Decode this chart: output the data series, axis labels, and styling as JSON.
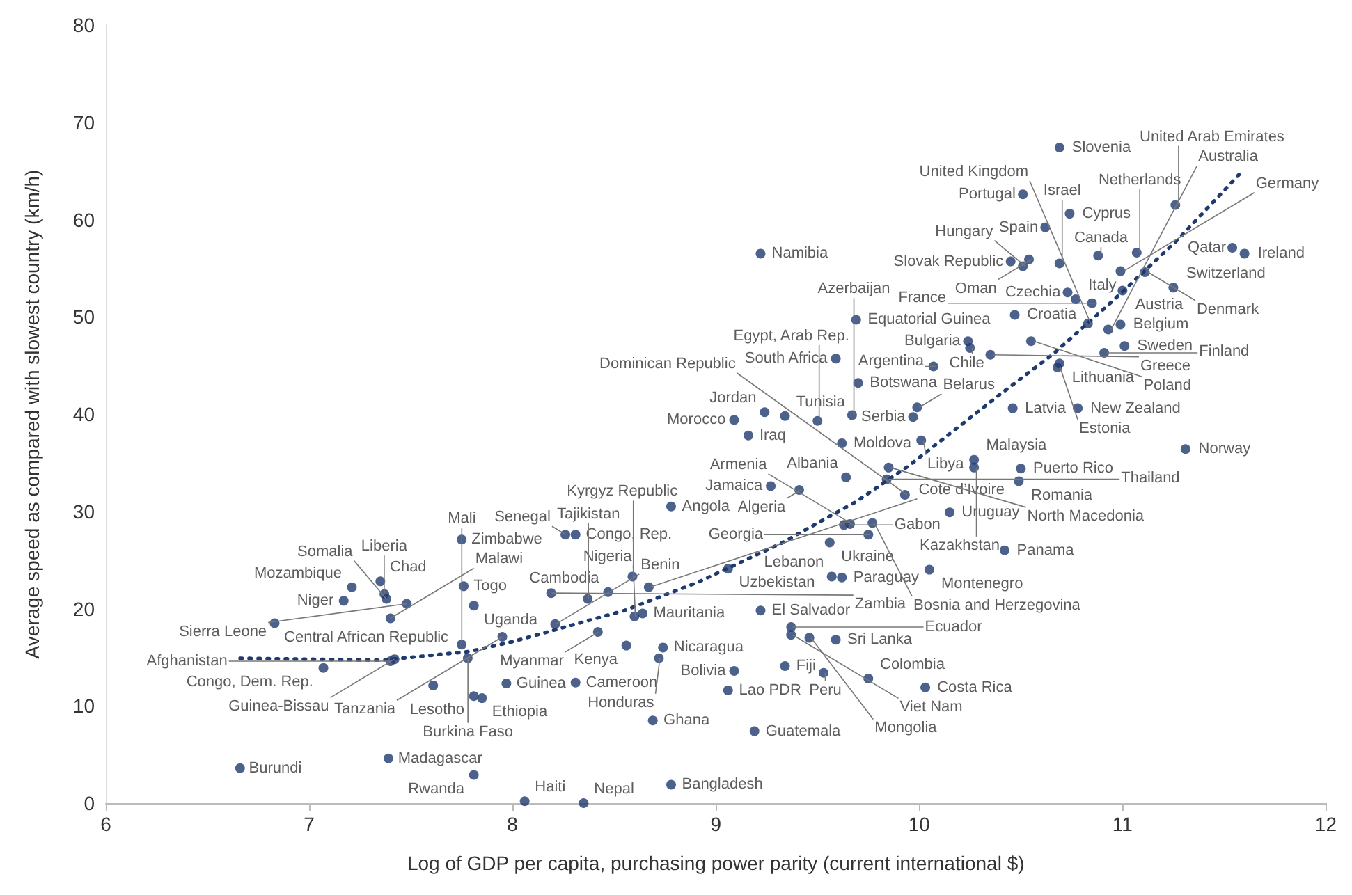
{
  "chart_data": {
    "type": "scatter",
    "xlabel": "Log of GDP per capita, purchasing power parity (current international $)",
    "ylabel": "Average speed as compared with slowest country (km/h)",
    "xlim": [
      6,
      12
    ],
    "ylim": [
      0,
      80
    ],
    "xticks": [
      6,
      7,
      8,
      9,
      10,
      11,
      12
    ],
    "yticks": [
      0,
      10,
      20,
      30,
      40,
      50,
      60,
      70,
      80
    ],
    "grid": false,
    "marker": "circle",
    "series": [
      {
        "type": "scatter",
        "color": "#1f3a6e",
        "x": [
          6.66,
          7.39,
          7.81,
          8.06,
          8.35,
          8.78,
          6.83,
          7.17,
          7.21,
          7.35,
          7.37,
          7.38,
          7.4,
          7.48,
          7.75,
          7.76,
          7.81,
          8.19,
          7.95,
          7.75,
          7.78,
          7.42,
          7.4,
          7.07,
          7.81,
          7.85,
          7.61,
          7.97,
          8.21,
          8.42,
          8.26,
          8.31,
          8.37,
          8.47,
          8.59,
          8.67,
          8.78,
          8.64,
          8.6,
          8.56,
          8.72,
          8.74,
          8.31,
          8.69,
          9.06,
          9.09,
          9.06,
          9.19,
          9.22,
          9.34,
          9.37,
          9.37,
          9.46,
          9.59,
          9.53,
          9.75,
          10.03,
          9.56,
          9.57,
          9.62,
          9.63,
          9.66,
          9.77,
          9.75,
          9.27,
          9.41,
          9.64,
          9.84,
          9.85,
          9.93,
          9.16,
          9.62,
          10.01,
          10.27,
          10.27,
          10.5,
          10.49,
          10.15,
          10.42,
          10.05,
          11.31,
          9.22,
          9.69,
          9.59,
          9.7,
          9.5,
          9.34,
          9.24,
          9.09,
          9.67,
          9.97,
          9.99,
          10.24,
          10.25,
          10.35,
          10.07,
          10.46,
          10.78,
          10.69,
          10.68,
          10.55,
          10.47,
          10.73,
          10.77,
          10.85,
          10.83,
          10.91,
          10.93,
          10.99,
          11.01,
          11.0,
          11.11,
          11.07,
          10.99,
          11.25,
          11.54,
          11.6,
          11.26,
          10.88,
          10.74,
          10.69,
          10.51,
          10.62,
          10.69,
          10.54,
          10.45,
          10.51
        ],
        "values": [
          3.6,
          4.6,
          2.9,
          0.2,
          0,
          1.9,
          18.5,
          20.8,
          22.2,
          22.8,
          21.5,
          21.0,
          19.0,
          20.5,
          27.1,
          22.3,
          20.3,
          21.6,
          17.1,
          16.3,
          14.9,
          14.8,
          14.6,
          13.9,
          11.0,
          10.8,
          12.1,
          12.3,
          18.4,
          17.6,
          27.6,
          27.6,
          21.0,
          21.7,
          23.3,
          22.2,
          30.5,
          19.5,
          19.2,
          16.2,
          14.9,
          16.0,
          12.4,
          8.5,
          24.1,
          13.6,
          11.6,
          7.4,
          19.8,
          14.1,
          18.1,
          17.3,
          17.0,
          16.8,
          13.4,
          12.8,
          11.9,
          26.8,
          23.3,
          23.2,
          28.6,
          28.7,
          28.8,
          27.6,
          32.6,
          32.2,
          33.5,
          33.3,
          34.5,
          31.7,
          37.8,
          37.0,
          37.3,
          35.3,
          34.5,
          34.4,
          33.1,
          29.9,
          26.0,
          24.0,
          36.4,
          56.5,
          49.7,
          45.7,
          43.2,
          39.3,
          39.8,
          40.2,
          39.4,
          39.9,
          39.7,
          40.7,
          47.5,
          46.8,
          46.1,
          44.9,
          40.6,
          40.6,
          45.2,
          44.8,
          47.5,
          50.2,
          52.5,
          51.8,
          51.4,
          49.3,
          46.3,
          48.7,
          49.2,
          47.0,
          52.7,
          54.6,
          56.6,
          54.7,
          53.0,
          57.1,
          56.5,
          61.5,
          56.3,
          60.6,
          67.4,
          62.6,
          59.2,
          55.5,
          55.9,
          55.7,
          55.2
        ]
      },
      {
        "type": "line",
        "color": "#1f3a6e",
        "line_style": "dotted",
        "marker": "none",
        "x": [
          6.66,
          7.36,
          7.79,
          8.0,
          8.55,
          8.91,
          9.32,
          9.69,
          9.95,
          10.39,
          10.66,
          10.95,
          11.27,
          11.59
        ],
        "values": [
          14.9,
          14.7,
          15.6,
          16.6,
          19.8,
          22.7,
          26.7,
          31.0,
          34.7,
          41.9,
          46.2,
          51.6,
          57.9,
          65.0
        ]
      }
    ],
    "annotations": [
      {
        "text": "Burundi",
        "x": 6.66,
        "y": 3.6
      },
      {
        "text": "Madagascar",
        "x": 7.39,
        "y": 4.6
      },
      {
        "text": "Rwanda",
        "x": 7.81,
        "y": 2.9
      },
      {
        "text": "Haiti",
        "x": 8.06,
        "y": 0.2
      },
      {
        "text": "Nepal",
        "x": 8.35,
        "y": 0
      },
      {
        "text": "Bangladesh",
        "x": 8.78,
        "y": 1.9
      },
      {
        "text": "Central African Republic",
        "x": 6.83,
        "y": 18.5
      },
      {
        "text": "Niger",
        "x": 7.17,
        "y": 20.8
      },
      {
        "text": "Mozambique",
        "x": 7.21,
        "y": 22.2
      },
      {
        "text": "Chad",
        "x": 7.35,
        "y": 22.8
      },
      {
        "text": "Liberia",
        "x": 7.37,
        "y": 21.5
      },
      {
        "text": "Somalia",
        "x": 7.38,
        "y": 21.0
      },
      {
        "text": "Malawi",
        "x": 7.4,
        "y": 19.0
      },
      {
        "text": "Sierra Leone",
        "x": 7.48,
        "y": 20.5
      },
      {
        "text": "Zimbabwe",
        "x": 7.75,
        "y": 27.1
      },
      {
        "text": "Togo",
        "x": 7.76,
        "y": 22.3
      },
      {
        "text": "Uganda",
        "x": 7.81,
        "y": 20.3
      },
      {
        "text": "Zambia",
        "x": 8.19,
        "y": 21.6
      },
      {
        "text": "Tanzania",
        "x": 7.95,
        "y": 17.1
      },
      {
        "text": "Mali",
        "x": 7.75,
        "y": 16.3
      },
      {
        "text": "Burkina Faso",
        "x": 7.78,
        "y": 14.9
      },
      {
        "text": "Guinea-Bissau",
        "x": 7.42,
        "y": 14.8
      },
      {
        "text": "Afghanistan",
        "x": 7.4,
        "y": 14.6
      },
      {
        "text": "Congo, Dem. Rep.",
        "x": 7.07,
        "y": 13.9
      },
      {
        "text": "Lesotho",
        "x": 7.81,
        "y": 11.0
      },
      {
        "text": "Ethiopia",
        "x": 7.85,
        "y": 10.8
      },
      {
        "text": "Guinea",
        "x": 7.97,
        "y": 12.3
      },
      {
        "text": "Benin",
        "x": 8.21,
        "y": 18.4
      },
      {
        "text": "Myanmar",
        "x": 8.42,
        "y": 17.6
      },
      {
        "text": "Senegal",
        "x": 8.26,
        "y": 27.6
      },
      {
        "text": "Congo, Rep.",
        "x": 8.31,
        "y": 27.6
      },
      {
        "text": "Tajikistan",
        "x": 8.37,
        "y": 21.0
      },
      {
        "text": "Cambodia",
        "x": 8.47,
        "y": 21.7
      },
      {
        "text": "Kyrgyz Republic",
        "x": 8.59,
        "y": 23.3
      },
      {
        "text": "Cote d’Ivoire",
        "x": 8.67,
        "y": 22.2
      },
      {
        "text": "Angola",
        "x": 8.78,
        "y": 30.5
      },
      {
        "text": "Mauritania",
        "x": 8.64,
        "y": 19.5
      },
      {
        "text": "Nigeria",
        "x": 8.6,
        "y": 19.2
      },
      {
        "text": "Kenya",
        "x": 8.56,
        "y": 16.2
      },
      {
        "text": "Honduras",
        "x": 8.72,
        "y": 14.9
      },
      {
        "text": "Nicaragua",
        "x": 8.74,
        "y": 16.0
      },
      {
        "text": "Cameroon",
        "x": 8.31,
        "y": 12.4
      },
      {
        "text": "Ghana",
        "x": 8.69,
        "y": 8.5
      },
      {
        "text": "Uzbekistan",
        "x": 9.06,
        "y": 24.1
      },
      {
        "text": "Bolivia",
        "x": 9.09,
        "y": 13.6
      },
      {
        "text": "Lao PDR",
        "x": 9.06,
        "y": 11.6
      },
      {
        "text": "Guatemala",
        "x": 9.19,
        "y": 7.4
      },
      {
        "text": "El Salvador",
        "x": 9.22,
        "y": 19.8
      },
      {
        "text": "Fiji",
        "x": 9.34,
        "y": 14.1
      },
      {
        "text": "Ecuador",
        "x": 9.37,
        "y": 18.1
      },
      {
        "text": "Viet Nam",
        "x": 9.37,
        "y": 17.3
      },
      {
        "text": "Mongolia",
        "x": 9.46,
        "y": 17.0
      },
      {
        "text": "Sri Lanka",
        "x": 9.59,
        "y": 16.8
      },
      {
        "text": "Peru",
        "x": 9.53,
        "y": 13.4
      },
      {
        "text": "Colombia",
        "x": 9.75,
        "y": 12.8
      },
      {
        "text": "Costa Rica",
        "x": 10.03,
        "y": 11.9
      },
      {
        "text": "Ukraine",
        "x": 9.56,
        "y": 26.8
      },
      {
        "text": "Lebanon",
        "x": 9.57,
        "y": 23.3
      },
      {
        "text": "Paraguay",
        "x": 9.62,
        "y": 23.2
      },
      {
        "text": "Gabon",
        "x": 9.63,
        "y": 28.6
      },
      {
        "text": "Armenia",
        "x": 9.66,
        "y": 28.7
      },
      {
        "text": "Bosnia and Herzegovina",
        "x": 9.77,
        "y": 28.8
      },
      {
        "text": "Georgia",
        "x": 9.75,
        "y": 27.6
      },
      {
        "text": "Jamaica",
        "x": 9.27,
        "y": 32.6
      },
      {
        "text": "Algeria",
        "x": 9.41,
        "y": 32.2
      },
      {
        "text": "Albania",
        "x": 9.64,
        "y": 33.5
      },
      {
        "text": "Thailand",
        "x": 9.84,
        "y": 33.3
      },
      {
        "text": "North Macedonia",
        "x": 9.85,
        "y": 34.5
      },
      {
        "text": "Dominican Republic",
        "x": 9.93,
        "y": 31.7
      },
      {
        "text": "Iraq",
        "x": 9.16,
        "y": 37.8
      },
      {
        "text": "Moldova",
        "x": 9.62,
        "y": 37.0
      },
      {
        "text": "Libya",
        "x": 10.01,
        "y": 37.3
      },
      {
        "text": "Malaysia",
        "x": 10.27,
        "y": 35.3
      },
      {
        "text": "Kazakhstan",
        "x": 10.27,
        "y": 34.5
      },
      {
        "text": "Puerto Rico",
        "x": 10.5,
        "y": 34.4
      },
      {
        "text": "Romania",
        "x": 10.49,
        "y": 33.1
      },
      {
        "text": "Uruguay",
        "x": 10.15,
        "y": 29.9
      },
      {
        "text": "Panama",
        "x": 10.42,
        "y": 26.0
      },
      {
        "text": "Montenegro",
        "x": 10.05,
        "y": 24.0
      },
      {
        "text": "Norway",
        "x": 11.31,
        "y": 36.4
      },
      {
        "text": "Namibia",
        "x": 9.22,
        "y": 56.5
      },
      {
        "text": "Equatorial Guinea",
        "x": 9.69,
        "y": 49.7
      },
      {
        "text": "South Africa",
        "x": 9.59,
        "y": 45.7
      },
      {
        "text": "Botswana",
        "x": 9.7,
        "y": 43.2
      },
      {
        "text": "Egypt, Arab Rep.",
        "x": 9.5,
        "y": 39.3
      },
      {
        "text": "Tunisia",
        "x": 9.34,
        "y": 39.8
      },
      {
        "text": "Jordan",
        "x": 9.24,
        "y": 40.2
      },
      {
        "text": "Morocco",
        "x": 9.09,
        "y": 39.4
      },
      {
        "text": "Azerbaijan",
        "x": 9.67,
        "y": 39.9
      },
      {
        "text": "Serbia",
        "x": 9.97,
        "y": 39.7
      },
      {
        "text": "Belarus",
        "x": 9.99,
        "y": 40.7
      },
      {
        "text": "Bulgaria",
        "x": 10.24,
        "y": 47.5
      },
      {
        "text": "Chile",
        "x": 10.25,
        "y": 46.8
      },
      {
        "text": "Greece",
        "x": 10.35,
        "y": 46.1
      },
      {
        "text": "Argentina",
        "x": 10.07,
        "y": 44.9
      },
      {
        "text": "Latvia",
        "x": 10.46,
        "y": 40.6
      },
      {
        "text": "New Zealand",
        "x": 10.78,
        "y": 40.6
      },
      {
        "text": "Lithuania",
        "x": 10.69,
        "y": 45.2
      },
      {
        "text": "Estonia",
        "x": 10.68,
        "y": 44.8
      },
      {
        "text": "Poland",
        "x": 10.55,
        "y": 47.5
      },
      {
        "text": "Croatia",
        "x": 10.47,
        "y": 50.2
      },
      {
        "text": "Czechia",
        "x": 10.73,
        "y": 52.5
      },
      {
        "text": "Italy",
        "x": 10.77,
        "y": 51.8
      },
      {
        "text": "France",
        "x": 10.85,
        "y": 51.4
      },
      {
        "text": "United Kingdom",
        "x": 10.83,
        "y": 49.3
      },
      {
        "text": "Finland",
        "x": 10.91,
        "y": 46.3
      },
      {
        "text": "Australia",
        "x": 10.93,
        "y": 48.7
      },
      {
        "text": "Belgium",
        "x": 10.99,
        "y": 49.2
      },
      {
        "text": "Sweden",
        "x": 11.01,
        "y": 47.0
      },
      {
        "text": "Austria",
        "x": 11.0,
        "y": 52.7
      },
      {
        "text": "Denmark",
        "x": 11.11,
        "y": 54.6
      },
      {
        "text": "Netherlands",
        "x": 11.07,
        "y": 56.6
      },
      {
        "text": "Germany",
        "x": 10.99,
        "y": 54.7
      },
      {
        "text": "Switzerland",
        "x": 11.25,
        "y": 53.0
      },
      {
        "text": "Qatar",
        "x": 11.54,
        "y": 57.1
      },
      {
        "text": "Ireland",
        "x": 11.6,
        "y": 56.5
      },
      {
        "text": "United Arab Emirates",
        "x": 11.26,
        "y": 61.5
      },
      {
        "text": "Canada",
        "x": 10.88,
        "y": 56.3
      },
      {
        "text": "Cyprus",
        "x": 10.74,
        "y": 60.6
      },
      {
        "text": "Slovenia",
        "x": 10.69,
        "y": 67.4
      },
      {
        "text": "Portugal",
        "x": 10.51,
        "y": 62.6
      },
      {
        "text": "Spain",
        "x": 10.62,
        "y": 59.2
      },
      {
        "text": "Israel",
        "x": 10.69,
        "y": 55.5
      },
      {
        "text": "Oman",
        "x": 10.54,
        "y": 55.9
      },
      {
        "text": "Slovak Republic",
        "x": 10.45,
        "y": 55.7
      },
      {
        "text": "Hungary",
        "x": 10.51,
        "y": 55.2
      }
    ]
  }
}
